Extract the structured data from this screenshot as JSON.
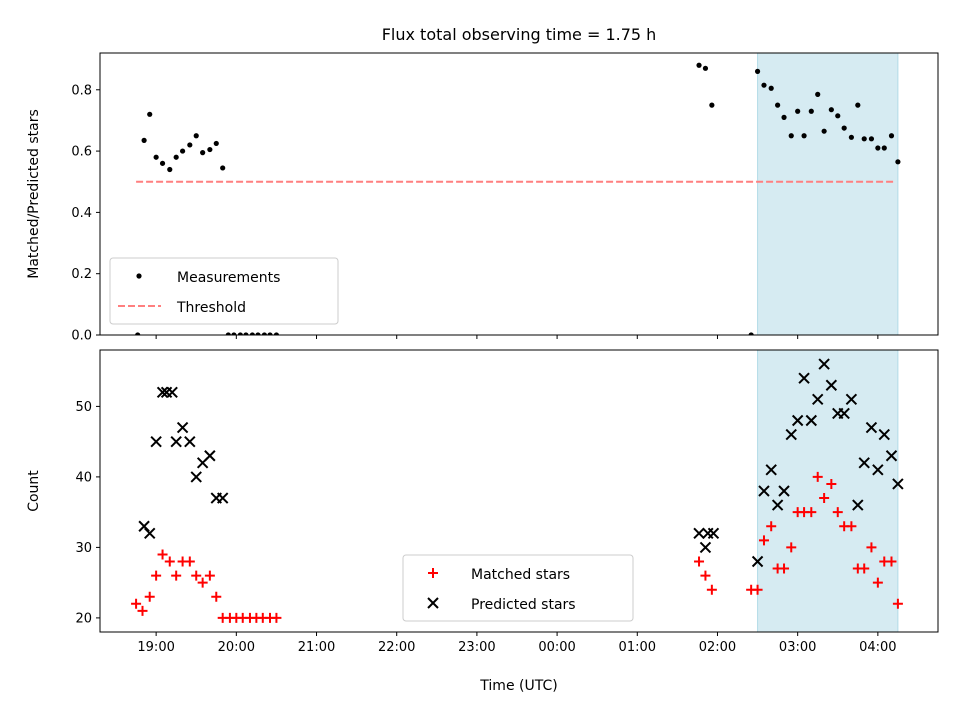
{
  "title": "Flux total observing time = 1.75 h",
  "chart_data": [
    {
      "type": "scatter",
      "ylabel": "Matched/Predicted stars",
      "xlim": [
        18.3,
        28.75
      ],
      "ylim": [
        0,
        0.92
      ],
      "yticks": [
        "0.0",
        "0.2",
        "0.4",
        "0.6",
        "0.8"
      ],
      "ytick_values": [
        0,
        0.2,
        0.4,
        0.6,
        0.8
      ],
      "highlight_span": [
        26.5,
        28.25
      ],
      "highlight_color": "#add8e6",
      "legend": {
        "position": "lower-left",
        "entries": [
          "Measurements",
          "Threshold"
        ]
      },
      "threshold": {
        "name": "Threshold",
        "y": 0.5,
        "x": [
          18.75,
          28.2
        ],
        "color": "#ff7f7f"
      },
      "measurements": {
        "name": "Measurements",
        "color": "#000000",
        "points": [
          [
            18.77,
            0.0
          ],
          [
            18.85,
            0.635
          ],
          [
            18.92,
            0.72
          ],
          [
            19.0,
            0.58
          ],
          [
            19.08,
            0.56
          ],
          [
            19.17,
            0.54
          ],
          [
            19.25,
            0.58
          ],
          [
            19.33,
            0.6
          ],
          [
            19.42,
            0.62
          ],
          [
            19.5,
            0.65
          ],
          [
            19.58,
            0.595
          ],
          [
            19.67,
            0.605
          ],
          [
            19.75,
            0.625
          ],
          [
            19.83,
            0.545
          ],
          [
            19.9,
            0.0
          ],
          [
            19.97,
            0.0
          ],
          [
            20.05,
            0.0
          ],
          [
            20.12,
            0.0
          ],
          [
            20.2,
            0.0
          ],
          [
            20.27,
            0.0
          ],
          [
            20.35,
            0.0
          ],
          [
            20.42,
            0.0
          ],
          [
            20.5,
            0.0
          ],
          [
            25.77,
            0.88
          ],
          [
            25.85,
            0.87
          ],
          [
            25.93,
            0.75
          ],
          [
            26.42,
            0.0
          ],
          [
            26.5,
            0.86
          ],
          [
            26.58,
            0.815
          ],
          [
            26.67,
            0.805
          ],
          [
            26.75,
            0.75
          ],
          [
            26.83,
            0.71
          ],
          [
            26.92,
            0.65
          ],
          [
            27.0,
            0.73
          ],
          [
            27.08,
            0.65
          ],
          [
            27.17,
            0.73
          ],
          [
            27.25,
            0.785
          ],
          [
            27.33,
            0.665
          ],
          [
            27.42,
            0.735
          ],
          [
            27.5,
            0.715
          ],
          [
            27.58,
            0.675
          ],
          [
            27.67,
            0.645
          ],
          [
            27.75,
            0.75
          ],
          [
            27.83,
            0.64
          ],
          [
            27.92,
            0.64
          ],
          [
            28.0,
            0.61
          ],
          [
            28.08,
            0.61
          ],
          [
            28.17,
            0.65
          ],
          [
            28.25,
            0.565
          ]
        ]
      }
    },
    {
      "type": "scatter",
      "xlabel": "Time (UTC)",
      "ylabel": "Count",
      "xlim": [
        18.3,
        28.75
      ],
      "ylim": [
        18,
        58
      ],
      "yticks": [
        "20",
        "30",
        "40",
        "50"
      ],
      "ytick_values": [
        20,
        30,
        40,
        50
      ],
      "xticks": [
        "19:00",
        "20:00",
        "21:00",
        "22:00",
        "23:00",
        "00:00",
        "01:00",
        "02:00",
        "03:00",
        "04:00"
      ],
      "xtick_values": [
        19,
        20,
        21,
        22,
        23,
        24,
        25,
        26,
        27,
        28
      ],
      "highlight_span": [
        26.5,
        28.25
      ],
      "highlight_color": "#add8e6",
      "legend": {
        "position": "lower-center",
        "entries": [
          "Matched stars",
          "Predicted stars"
        ]
      },
      "series": [
        {
          "name": "Matched stars",
          "marker": "plus",
          "color": "#ff0000",
          "points": [
            [
              18.75,
              22
            ],
            [
              18.83,
              21
            ],
            [
              18.92,
              23
            ],
            [
              19.0,
              26
            ],
            [
              19.08,
              29
            ],
            [
              19.17,
              28
            ],
            [
              19.25,
              26
            ],
            [
              19.33,
              28
            ],
            [
              19.42,
              28
            ],
            [
              19.5,
              26
            ],
            [
              19.58,
              25
            ],
            [
              19.67,
              26
            ],
            [
              19.75,
              23
            ],
            [
              19.83,
              20
            ],
            [
              19.92,
              20
            ],
            [
              20.0,
              20
            ],
            [
              20.08,
              20
            ],
            [
              20.17,
              20
            ],
            [
              20.25,
              20
            ],
            [
              20.33,
              20
            ],
            [
              20.42,
              20
            ],
            [
              20.5,
              20
            ],
            [
              25.77,
              28
            ],
            [
              25.85,
              26
            ],
            [
              25.93,
              24
            ],
            [
              26.42,
              24
            ],
            [
              26.5,
              24
            ],
            [
              26.58,
              31
            ],
            [
              26.67,
              33
            ],
            [
              26.75,
              27
            ],
            [
              26.83,
              27
            ],
            [
              26.92,
              30
            ],
            [
              27.0,
              35
            ],
            [
              27.08,
              35
            ],
            [
              27.17,
              35
            ],
            [
              27.25,
              40
            ],
            [
              27.33,
              37
            ],
            [
              27.42,
              39
            ],
            [
              27.5,
              35
            ],
            [
              27.58,
              33
            ],
            [
              27.67,
              33
            ],
            [
              27.75,
              27
            ],
            [
              27.83,
              27
            ],
            [
              27.92,
              30
            ],
            [
              28.0,
              25
            ],
            [
              28.08,
              28
            ],
            [
              28.17,
              28
            ],
            [
              28.25,
              22
            ]
          ]
        },
        {
          "name": "Predicted stars",
          "marker": "x",
          "color": "#000000",
          "points": [
            [
              18.85,
              33
            ],
            [
              18.92,
              32
            ],
            [
              19.0,
              45
            ],
            [
              19.08,
              52
            ],
            [
              19.13,
              52
            ],
            [
              19.2,
              52
            ],
            [
              19.25,
              45
            ],
            [
              19.33,
              47
            ],
            [
              19.42,
              45
            ],
            [
              19.5,
              40
            ],
            [
              19.58,
              42
            ],
            [
              19.67,
              43
            ],
            [
              19.75,
              37
            ],
            [
              19.83,
              37
            ],
            [
              25.77,
              32
            ],
            [
              25.85,
              30
            ],
            [
              25.88,
              32
            ],
            [
              25.95,
              32
            ],
            [
              26.5,
              28
            ],
            [
              26.58,
              38
            ],
            [
              26.67,
              41
            ],
            [
              26.75,
              36
            ],
            [
              26.83,
              38
            ],
            [
              26.92,
              46
            ],
            [
              27.0,
              48
            ],
            [
              27.08,
              54
            ],
            [
              27.17,
              48
            ],
            [
              27.25,
              51
            ],
            [
              27.33,
              56
            ],
            [
              27.42,
              53
            ],
            [
              27.5,
              49
            ],
            [
              27.58,
              49
            ],
            [
              27.67,
              51
            ],
            [
              27.75,
              36
            ],
            [
              27.83,
              42
            ],
            [
              27.92,
              47
            ],
            [
              28.0,
              41
            ],
            [
              28.08,
              46
            ],
            [
              28.17,
              43
            ],
            [
              28.25,
              39
            ]
          ]
        }
      ]
    }
  ]
}
